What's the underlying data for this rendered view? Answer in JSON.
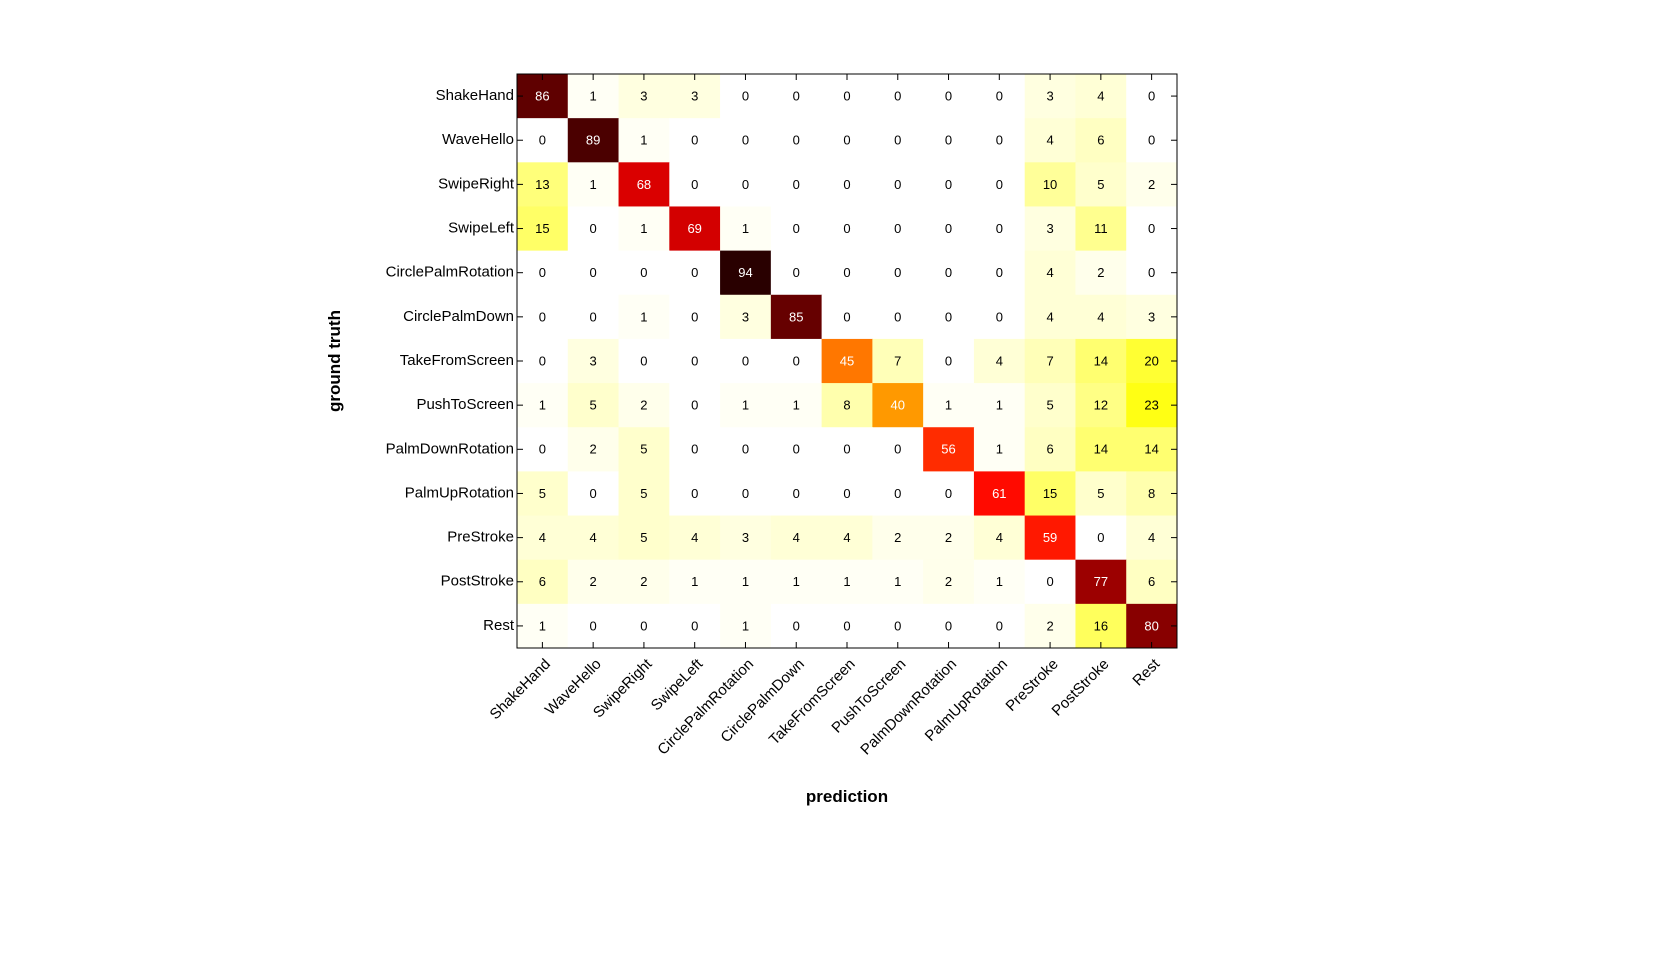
{
  "chart_data": {
    "type": "heatmap",
    "title": "",
    "xlabel": "prediction",
    "ylabel": "ground truth",
    "rows": [
      "ShakeHand",
      "WaveHello",
      "SwipeRight",
      "SwipeLeft",
      "CirclePalmRotation",
      "CirclePalmDown",
      "TakeFromScreen",
      "PushToScreen",
      "PalmDownRotation",
      "PalmUpRotation",
      "PreStroke",
      "PostStroke",
      "Rest"
    ],
    "columns": [
      "ShakeHand",
      "WaveHello",
      "SwipeRight",
      "SwipeLeft",
      "CirclePalmRotation",
      "CirclePalmDown",
      "TakeFromScreen",
      "PushToScreen",
      "PalmDownRotation",
      "PalmUpRotation",
      "PreStroke",
      "PostStroke",
      "Rest"
    ],
    "values": [
      [
        86,
        1,
        3,
        3,
        0,
        0,
        0,
        0,
        0,
        0,
        3,
        4,
        0
      ],
      [
        0,
        89,
        1,
        0,
        0,
        0,
        0,
        0,
        0,
        0,
        4,
        6,
        0
      ],
      [
        13,
        1,
        68,
        0,
        0,
        0,
        0,
        0,
        0,
        0,
        10,
        5,
        2
      ],
      [
        15,
        0,
        1,
        69,
        1,
        0,
        0,
        0,
        0,
        0,
        3,
        11,
        0
      ],
      [
        0,
        0,
        0,
        0,
        94,
        0,
        0,
        0,
        0,
        0,
        4,
        2,
        0
      ],
      [
        0,
        0,
        1,
        0,
        3,
        85,
        0,
        0,
        0,
        0,
        4,
        4,
        3
      ],
      [
        0,
        3,
        0,
        0,
        0,
        0,
        45,
        7,
        0,
        4,
        7,
        14,
        20
      ],
      [
        1,
        5,
        2,
        0,
        1,
        1,
        8,
        40,
        1,
        1,
        5,
        12,
        23
      ],
      [
        0,
        2,
        5,
        0,
        0,
        0,
        0,
        0,
        56,
        1,
        6,
        14,
        14
      ],
      [
        5,
        0,
        5,
        0,
        0,
        0,
        0,
        0,
        0,
        61,
        15,
        5,
        8
      ],
      [
        4,
        4,
        5,
        4,
        3,
        4,
        4,
        2,
        2,
        4,
        59,
        0,
        4
      ],
      [
        6,
        2,
        2,
        1,
        1,
        1,
        1,
        1,
        2,
        1,
        0,
        77,
        6
      ],
      [
        1,
        0,
        0,
        0,
        1,
        0,
        0,
        0,
        0,
        0,
        2,
        16,
        80
      ]
    ],
    "colormap": "hot (reversed)",
    "grid": false
  }
}
